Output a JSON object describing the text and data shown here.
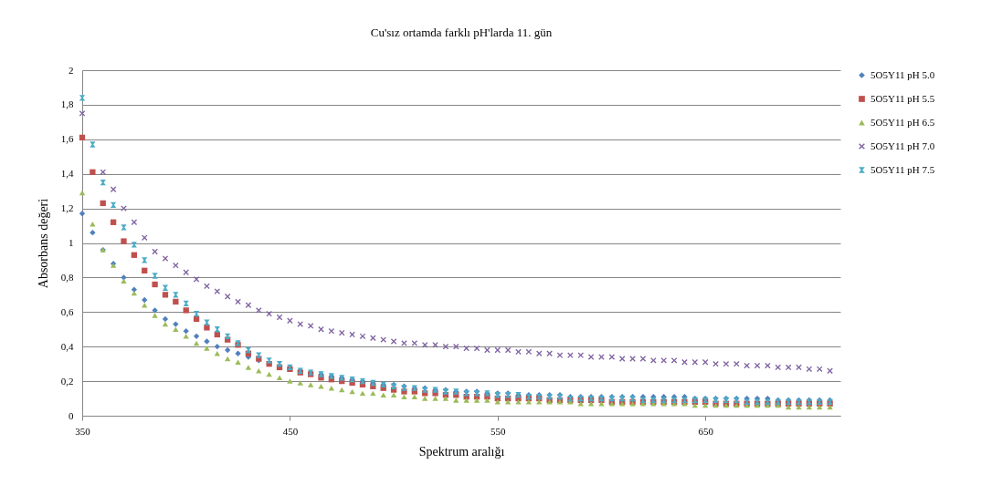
{
  "chart_data": {
    "type": "scatter",
    "title": "Cu'sız ortamda farklı pH'larda 11. gün",
    "xlabel": "Spektrum aralığı",
    "ylabel": "Absorbans değeri",
    "x": [
      350,
      355,
      360,
      365,
      370,
      375,
      380,
      385,
      390,
      395,
      400,
      405,
      410,
      415,
      420,
      425,
      430,
      435,
      440,
      445,
      450,
      455,
      460,
      465,
      470,
      475,
      480,
      485,
      490,
      495,
      500,
      505,
      510,
      515,
      520,
      525,
      530,
      535,
      540,
      545,
      550,
      555,
      560,
      565,
      570,
      575,
      580,
      585,
      590,
      595,
      600,
      605,
      610,
      615,
      620,
      625,
      630,
      635,
      640,
      645,
      650,
      655,
      660,
      665,
      670,
      675,
      680,
      685,
      690,
      695,
      700,
      705,
      710
    ],
    "series": [
      {
        "name": "5O5Y11 pH 5.0",
        "color": "#4f81bd",
        "marker": "diamond",
        "values": [
          1.17,
          1.06,
          0.96,
          0.88,
          0.8,
          0.73,
          0.67,
          0.61,
          0.56,
          0.53,
          0.49,
          0.46,
          0.43,
          0.4,
          0.38,
          0.36,
          0.34,
          0.32,
          0.3,
          0.29,
          0.27,
          0.26,
          0.25,
          0.24,
          0.23,
          0.22,
          0.21,
          0.2,
          0.19,
          0.18,
          0.18,
          0.17,
          0.16,
          0.16,
          0.15,
          0.15,
          0.14,
          0.14,
          0.14,
          0.13,
          0.13,
          0.13,
          0.12,
          0.12,
          0.12,
          0.12,
          0.12,
          0.11,
          0.11,
          0.11,
          0.11,
          0.11,
          0.11,
          0.11,
          0.11,
          0.11,
          0.11,
          0.11,
          0.11,
          0.1,
          0.1,
          0.1,
          0.1,
          0.1,
          0.1,
          0.1,
          0.1,
          0.09,
          0.09,
          0.09,
          0.09,
          0.09,
          0.09
        ]
      },
      {
        "name": "5O5Y11 pH 5.5",
        "color": "#c0504d",
        "marker": "square",
        "values": [
          1.61,
          1.41,
          1.23,
          1.12,
          1.01,
          0.93,
          0.84,
          0.76,
          0.7,
          0.66,
          0.61,
          0.56,
          0.51,
          0.47,
          0.44,
          0.41,
          0.36,
          0.33,
          0.3,
          0.28,
          0.27,
          0.25,
          0.24,
          0.22,
          0.21,
          0.2,
          0.19,
          0.18,
          0.17,
          0.16,
          0.15,
          0.14,
          0.14,
          0.13,
          0.13,
          0.12,
          0.12,
          0.11,
          0.11,
          0.11,
          0.1,
          0.1,
          0.1,
          0.1,
          0.1,
          0.09,
          0.09,
          0.09,
          0.09,
          0.09,
          0.09,
          0.08,
          0.08,
          0.08,
          0.08,
          0.08,
          0.08,
          0.08,
          0.08,
          0.08,
          0.08,
          0.07,
          0.07,
          0.07,
          0.07,
          0.07,
          0.07,
          0.07,
          0.07,
          0.07,
          0.07,
          0.07,
          0.07
        ]
      },
      {
        "name": "5O5Y11 pH 6.5",
        "color": "#9bbb59",
        "marker": "triangle",
        "values": [
          1.29,
          1.11,
          0.96,
          0.87,
          0.78,
          0.71,
          0.64,
          0.58,
          0.53,
          0.5,
          0.46,
          0.42,
          0.39,
          0.36,
          0.33,
          0.31,
          0.28,
          0.26,
          0.24,
          0.22,
          0.2,
          0.19,
          0.18,
          0.17,
          0.16,
          0.15,
          0.14,
          0.13,
          0.13,
          0.12,
          0.12,
          0.11,
          0.11,
          0.1,
          0.1,
          0.1,
          0.09,
          0.09,
          0.09,
          0.09,
          0.08,
          0.08,
          0.08,
          0.08,
          0.08,
          0.08,
          0.08,
          0.08,
          0.07,
          0.07,
          0.07,
          0.07,
          0.07,
          0.07,
          0.07,
          0.07,
          0.07,
          0.07,
          0.07,
          0.06,
          0.06,
          0.06,
          0.06,
          0.06,
          0.06,
          0.06,
          0.06,
          0.06,
          0.05,
          0.05,
          0.05,
          0.05,
          0.05
        ]
      },
      {
        "name": "5O5Y11 pH 7.0",
        "color": "#8064a2",
        "marker": "cross",
        "values": [
          1.75,
          null,
          1.41,
          1.31,
          1.2,
          1.12,
          1.03,
          0.95,
          0.91,
          0.87,
          0.83,
          0.79,
          0.75,
          0.72,
          0.69,
          0.66,
          0.64,
          0.61,
          0.59,
          0.57,
          0.55,
          0.53,
          0.52,
          0.5,
          0.49,
          0.48,
          0.47,
          0.46,
          0.45,
          0.44,
          0.43,
          0.42,
          0.42,
          0.41,
          0.41,
          0.4,
          0.4,
          0.39,
          0.39,
          0.38,
          0.38,
          0.38,
          0.37,
          0.37,
          0.36,
          0.36,
          0.35,
          0.35,
          0.35,
          0.34,
          0.34,
          0.34,
          0.33,
          0.33,
          0.33,
          0.32,
          0.32,
          0.32,
          0.31,
          0.31,
          0.31,
          0.3,
          0.3,
          0.3,
          0.29,
          0.29,
          0.29,
          0.28,
          0.28,
          0.28,
          0.27,
          0.27,
          0.26
        ]
      },
      {
        "name": "5O5Y11 pH 7.5",
        "color": "#4bacc6",
        "marker": "star",
        "values": [
          1.84,
          1.57,
          1.35,
          1.22,
          1.09,
          0.99,
          0.9,
          0.81,
          0.74,
          0.7,
          0.65,
          0.59,
          0.54,
          0.5,
          0.46,
          0.42,
          0.38,
          0.35,
          0.32,
          0.3,
          0.28,
          0.26,
          0.25,
          0.24,
          0.23,
          0.22,
          0.21,
          0.2,
          0.19,
          0.18,
          0.17,
          0.16,
          0.16,
          0.15,
          0.15,
          0.14,
          0.14,
          0.13,
          0.13,
          0.13,
          0.12,
          0.12,
          0.12,
          0.11,
          0.11,
          0.11,
          0.11,
          0.1,
          0.1,
          0.1,
          0.1,
          0.1,
          0.1,
          0.1,
          0.09,
          0.09,
          0.09,
          0.09,
          0.09,
          0.09,
          0.09,
          0.09,
          0.09,
          0.09,
          0.08,
          0.08,
          0.08,
          0.08,
          0.08,
          0.08,
          0.08,
          0.08,
          0.08
        ]
      }
    ],
    "xlim": [
      350,
      715
    ],
    "xticks": [
      350,
      450,
      550,
      650
    ],
    "ylim": [
      0,
      2
    ],
    "yticks": [
      0,
      {
        "value": 0.2,
        "label": "0,2"
      },
      {
        "value": 0.4,
        "label": "0,4"
      },
      {
        "value": 0.6,
        "label": "0,6"
      },
      {
        "value": 0.8,
        "label": "0,8"
      },
      1,
      {
        "value": 1.2,
        "label": "1,2"
      },
      {
        "value": 1.4,
        "label": "1,4"
      },
      {
        "value": 1.6,
        "label": "1,6"
      },
      {
        "value": 1.8,
        "label": "1,8"
      },
      2
    ],
    "grid": "y",
    "legend": "right"
  }
}
